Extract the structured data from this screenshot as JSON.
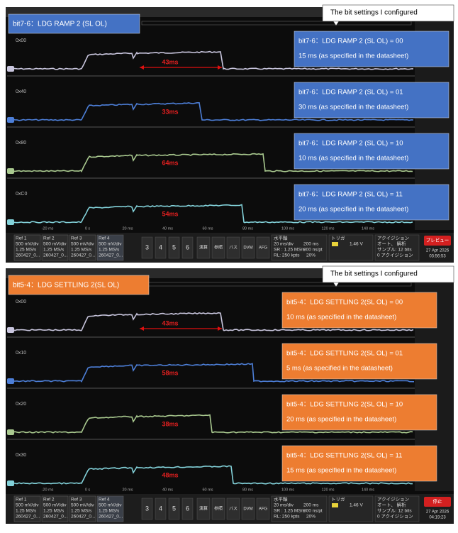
{
  "panels": [
    {
      "title": "bit7-6：LDG RAMP 2 (SL OL)",
      "note": "The bit settings I configured",
      "channels": [
        {
          "code": "0x00",
          "duration": "43ms",
          "setting": "bit7-6：LDG RAMP 2 (SL OL) = 00",
          "spec": "15 ms (as specified in the datasheet)"
        },
        {
          "code": "0x40",
          "duration": "33ms",
          "setting": "bit7-6：LDG RAMP 2 (SL OL) = 01",
          "spec": "30 ms (as specified in the datasheet)"
        },
        {
          "code": "0x80",
          "duration": "64ms",
          "setting": "bit7-6：LDG RAMP 2 (SL OL) = 10",
          "spec": "10 ms (as specified in the datasheet)"
        },
        {
          "code": "0xC0",
          "duration": "54ms",
          "setting": "bit7-6：LDG RAMP 2 (SL OL) = 11",
          "spec": "20 ms (as specified in the datasheet)"
        }
      ],
      "x_axis_labels": [
        "-20 ms",
        "0 s",
        "20 ms",
        "40 ms",
        "60 ms",
        "80 ms",
        "100 ms",
        "120 ms",
        "140 ms"
      ],
      "refs": [
        {
          "name": "Ref 1",
          "scale": "500 mV/div",
          "rate": "1.25 MS/s",
          "file": "260427_0..."
        },
        {
          "name": "Ref 2",
          "scale": "500 mV/div",
          "rate": "1.25 MS/s",
          "file": "260427_0..."
        },
        {
          "name": "Ref 3",
          "scale": "500 mV/div",
          "rate": "1.25 MS/s",
          "file": "260427_0..."
        },
        {
          "name": "Ref 4",
          "scale": "500 mV/div",
          "rate": "1.25 MS/s",
          "file": "260427_0..."
        }
      ],
      "buttons": [
        "3",
        "4",
        "5",
        "6",
        "演算",
        "参照",
        "バス",
        "DVM",
        "AFG"
      ],
      "horizontal": {
        "heading": "水平軸",
        "scale": "20 ms/div",
        "length": "200 ms",
        "rate": "SR : 1.25 MS/s",
        "resolution": "800 ns/pt",
        "record": "RL: 250 kpts",
        "position": "20%"
      },
      "trigger": {
        "heading": "トリガ",
        "level": "1.46 V"
      },
      "acquisition": {
        "heading": "アクイジション",
        "mode": "オート、 解析",
        "bits": "サンプル: 12 bits",
        "count": "0 アクイジション"
      },
      "status": "プレビュー",
      "date": "27 Apr 2026",
      "time": "03:56:53"
    },
    {
      "title": "bit5-4：LDG SETTLING 2(SL OL)",
      "note": "The bit settings I configured",
      "channels": [
        {
          "code": "0x00",
          "duration": "43ms",
          "setting": "bit5-4：LDG SETTLING 2(SL OL) = 00",
          "spec": "10 ms (as specified in the datasheet)"
        },
        {
          "code": "0x10",
          "duration": "58ms",
          "setting": "bit5-4：LDG SETTLING 2(SL OL) = 01",
          "spec": "5 ms (as specified in the datasheet)"
        },
        {
          "code": "0x20",
          "duration": "38ms",
          "setting": "bit5-4：LDG SETTLING 2(SL OL) = 10",
          "spec": "20 ms (as specified in the datasheet)"
        },
        {
          "code": "0x30",
          "duration": "48ms",
          "setting": "bit5-4：LDG SETTLING 2(SL OL) = 11",
          "spec": "15 ms (as specified in the datasheet)"
        }
      ],
      "x_axis_labels": [
        "-20 ms",
        "0 s",
        "20 ms",
        "40 ms",
        "60 ms",
        "80 ms",
        "100 ms",
        "120 ms",
        "140 ms"
      ],
      "refs": [
        {
          "name": "Ref 1",
          "scale": "500 mV/div",
          "rate": "1.25 MS/s",
          "file": "260427_0..."
        },
        {
          "name": "Ref 2",
          "scale": "500 mV/div",
          "rate": "1.25 MS/s",
          "file": "260427_0..."
        },
        {
          "name": "Ref 3",
          "scale": "500 mV/div",
          "rate": "1.25 MS/s",
          "file": "260427_0..."
        },
        {
          "name": "Ref 4",
          "scale": "500 mV/div",
          "rate": "1.25 MS/s",
          "file": "260427_0..."
        }
      ],
      "buttons": [
        "3",
        "4",
        "5",
        "6",
        "演算",
        "参照",
        "バス",
        "DVM",
        "AFG"
      ],
      "horizontal": {
        "heading": "水平軸",
        "scale": "20 ms/div",
        "length": "200 ms",
        "rate": "SR : 1.25 MS/s",
        "resolution": "800 ns/pt",
        "record": "RL: 250 kpts",
        "position": "20%"
      },
      "trigger": {
        "heading": "トリガ",
        "level": "1.46 V"
      },
      "acquisition": {
        "heading": "アクイジション",
        "mode": "オート、 解析",
        "bits": "サンプル: 12 bits",
        "count": "0 アクイジション"
      },
      "status": "停止",
      "date": "27 Apr 2026",
      "time": "04:19:23"
    }
  ]
}
